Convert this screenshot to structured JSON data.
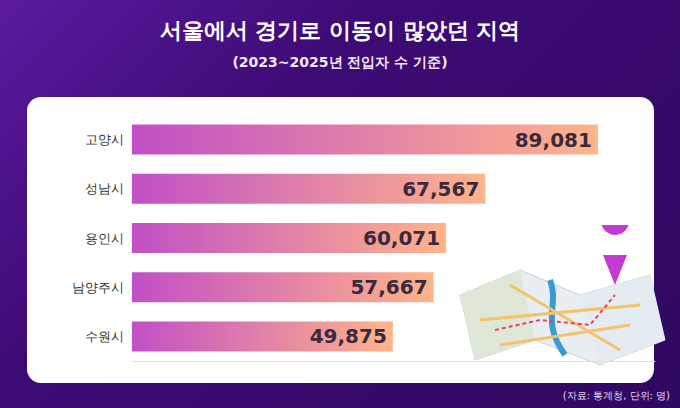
{
  "chart_data": {
    "type": "bar",
    "title": "서울에서 경기로 이동이 많았던 지역",
    "subtitle": "(2023~2025년 전입자 수 기준)",
    "annotations": [
      "(자료: 통계청, 단위: 명)"
    ],
    "categories": [
      "고양시",
      "성남시",
      "용인시",
      "남양주시",
      "수원시"
    ],
    "values": [
      89081,
      67567,
      60071,
      57667,
      49875
    ],
    "value_labels": [
      "89,081",
      "67,567",
      "60,071",
      "57,667",
      "49,875"
    ],
    "color": "#ffb48a",
    "orientation": "horizontal",
    "xlim": [
      0,
      100000
    ],
    "data_labels": true,
    "tick_labels": "y",
    "grid": false
  }
}
